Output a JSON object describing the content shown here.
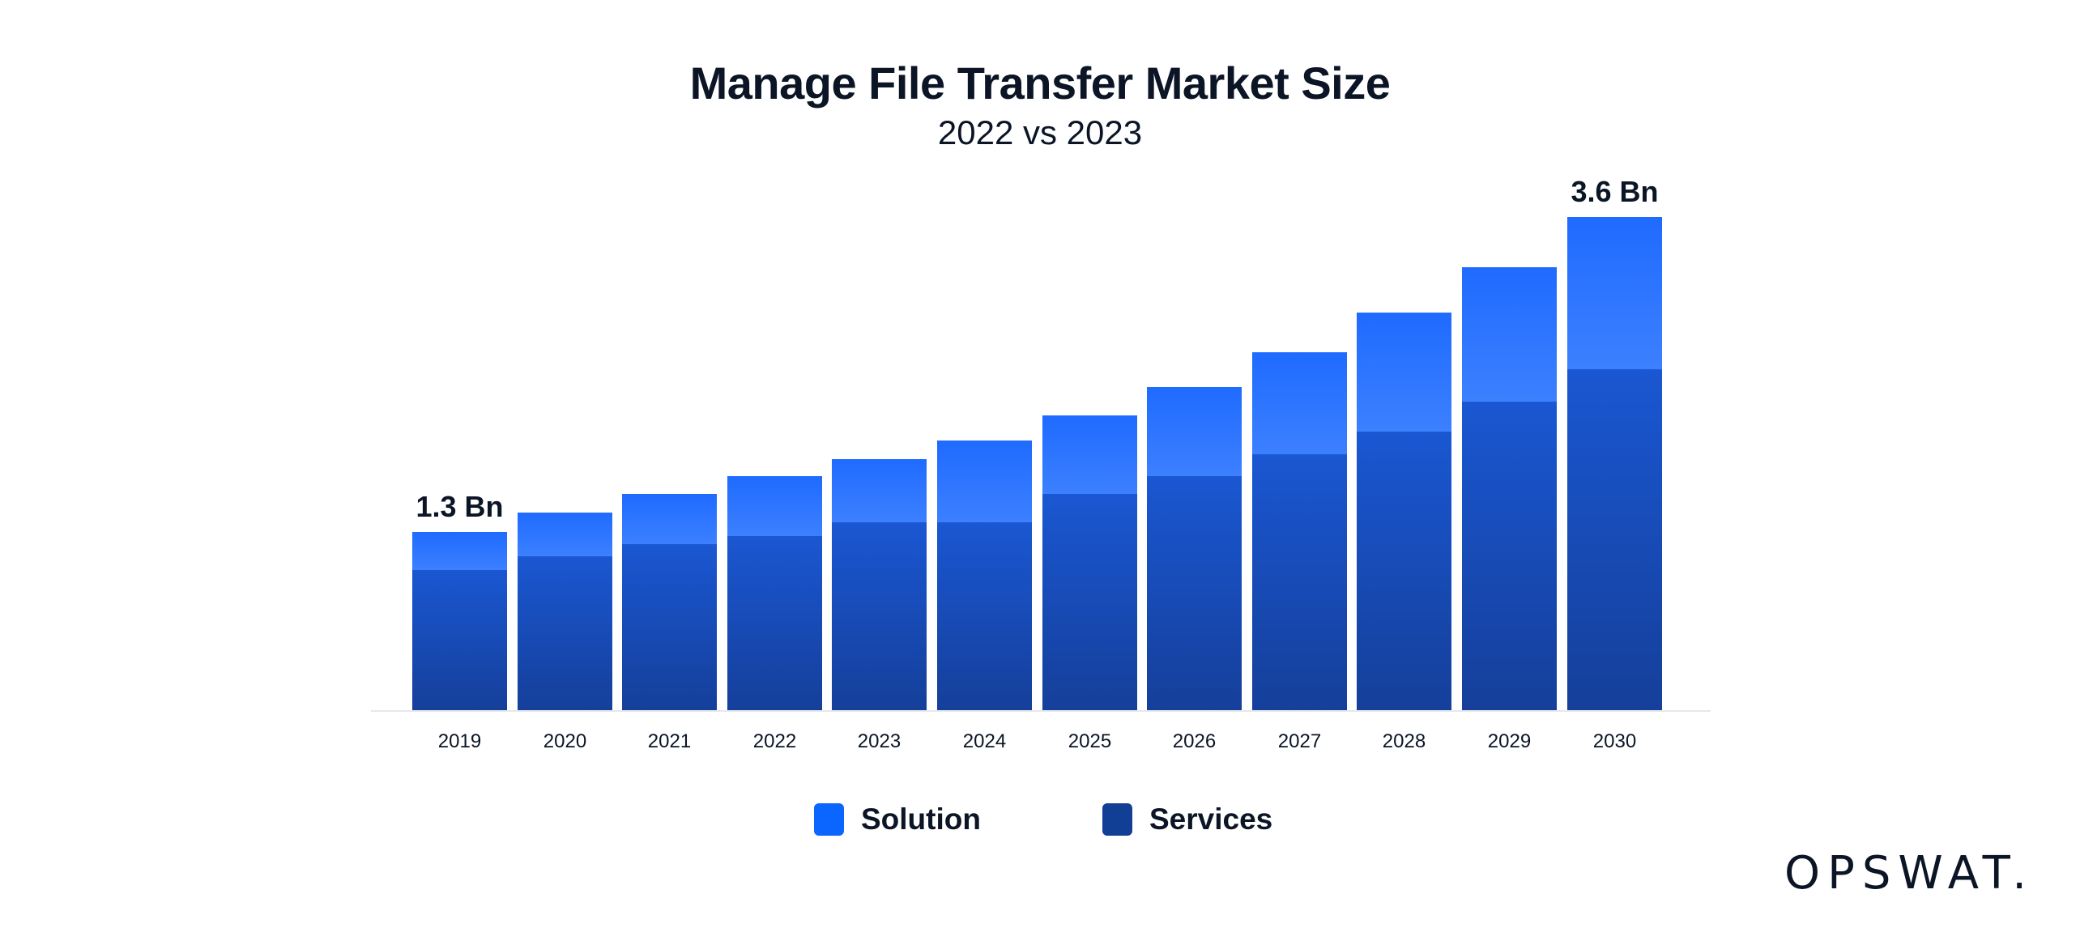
{
  "header": {
    "title": "Manage File Transfer Market Size",
    "subtitle": "2022 vs 2023"
  },
  "annotations": {
    "first": "1.3 Bn",
    "last": "3.6 Bn"
  },
  "legend": {
    "solution": "Solution",
    "services": "Services"
  },
  "colors": {
    "solution": "#1f6bff",
    "services": "#153f9a",
    "text": "#0b1526"
  },
  "logo": {
    "text": "OPSWAT."
  },
  "chart_data": {
    "type": "bar",
    "stacked": true,
    "title": "Manage File Transfer Market Size",
    "subtitle": "2022 vs 2023",
    "xlabel": "",
    "ylabel": "",
    "unit": "Bn",
    "categories": [
      "2019",
      "2020",
      "2021",
      "2022",
      "2023",
      "2024",
      "2025",
      "2026",
      "2027",
      "2028",
      "2029",
      "2030"
    ],
    "series": [
      {
        "name": "Services",
        "color": "#153f9a",
        "values": [
          1.02,
          1.12,
          1.21,
          1.27,
          1.37,
          1.37,
          1.58,
          1.71,
          1.87,
          2.03,
          2.25,
          2.49
        ]
      },
      {
        "name": "Solution",
        "color": "#1f6bff",
        "values": [
          0.28,
          0.32,
          0.37,
          0.44,
          0.46,
          0.6,
          0.57,
          0.65,
          0.74,
          0.87,
          0.98,
          1.11
        ]
      }
    ],
    "totals": [
      1.3,
      1.44,
      1.58,
      1.71,
      1.83,
      1.97,
      2.15,
      2.36,
      2.61,
      2.9,
      3.23,
      3.6
    ],
    "annotations": [
      {
        "category": "2019",
        "text": "1.3 Bn"
      },
      {
        "category": "2030",
        "text": "3.6 Bn"
      }
    ],
    "ylim": [
      0,
      3.6
    ],
    "grid": false,
    "y_axis_visible": false,
    "legend_position": "bottom"
  }
}
